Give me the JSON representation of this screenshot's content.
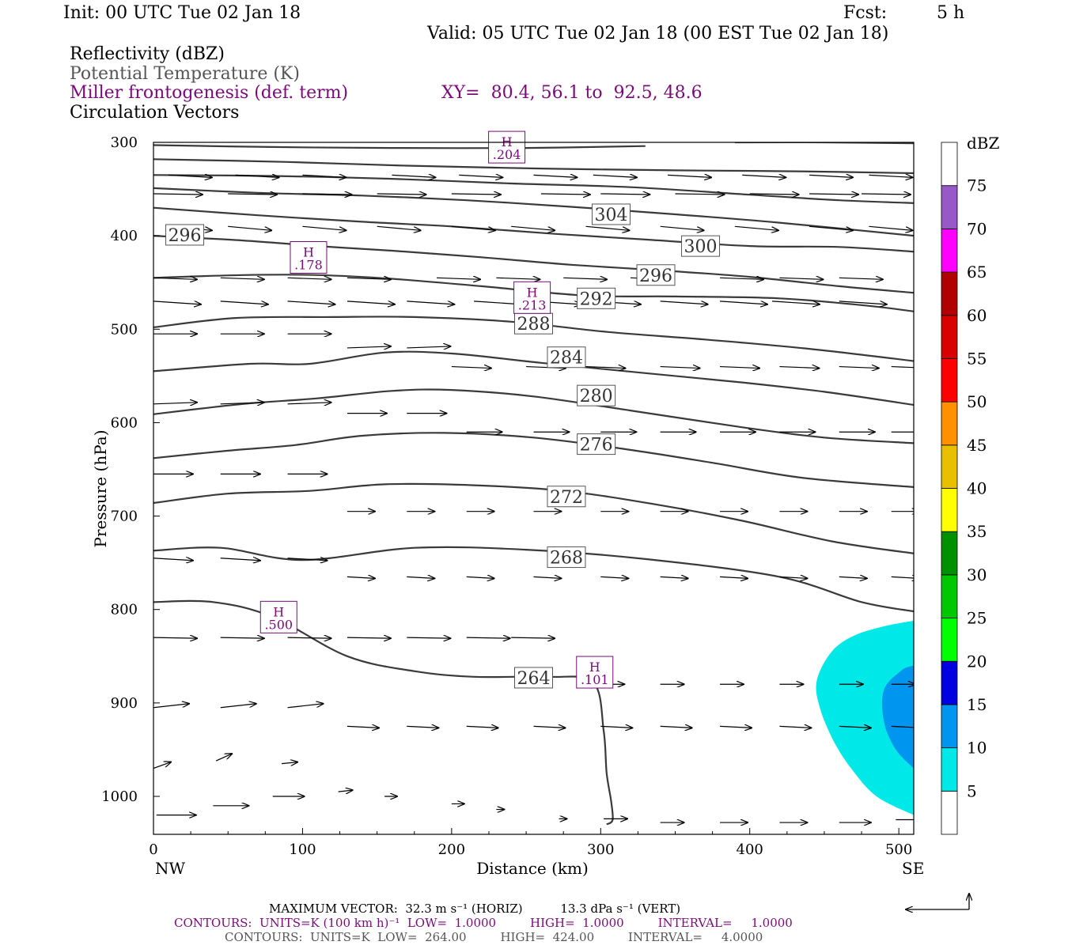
{
  "header": {
    "init": "Init: 00 UTC Tue 02 Jan 18",
    "fcst_label": "Fcst:",
    "fcst_value": "5 h",
    "valid": "Valid: 05 UTC Tue 02 Jan 18 (00 EST Tue 02 Jan 18)"
  },
  "legend": {
    "line1": "Reflectivity (dBZ)",
    "line2": "Potential Temperature (K)",
    "line3": "Miller frontogenesis (def. term)",
    "xy": "XY=  80.4, 56.1 to  92.5, 48.6",
    "line4": "Circulation Vectors"
  },
  "footer": {
    "line1": "MAXIMUM VECTOR:  32.3 m s⁻¹ (HORIZ)          13.3 dPa s⁻¹ (VERT)",
    "line2": "CONTOURS:  UNITS=K (100 km h)⁻¹  LOW=  1.0000         HIGH=  1.0000         INTERVAL=     1.0000",
    "line3": "CONTOURS:  UNITS=K  LOW=  264.00         HIGH=  424.00         INTERVAL=     4.0000"
  },
  "chart_data": {
    "type": "contour",
    "xlabel": "Distance (km)",
    "ylabel": "Pressure (hPa)",
    "x_end_left": "NW",
    "x_end_right": "SE",
    "xlim": [
      0,
      510
    ],
    "ylim": [
      300,
      1040
    ],
    "x_ticks": [
      0,
      100,
      200,
      300,
      400,
      500
    ],
    "y_ticks": [
      300,
      400,
      500,
      600,
      700,
      800,
      900,
      1000
    ],
    "colorbar": {
      "unit": "dBZ",
      "levels": [
        5,
        10,
        15,
        20,
        25,
        30,
        35,
        40,
        45,
        50,
        55,
        60,
        65,
        70,
        75
      ],
      "colors": [
        "#ffffff",
        "#00e8e8",
        "#0096f0",
        "#0000e0",
        "#00ff00",
        "#00c800",
        "#009000",
        "#ffff00",
        "#e8c000",
        "#ff9000",
        "#ff0000",
        "#d80000",
        "#b00000",
        "#ff00ff",
        "#9858c8",
        "#ffffff"
      ]
    },
    "theta_contours": [
      {
        "value": 264,
        "label": "264",
        "pts": [
          [
            0,
            792
          ],
          [
            40,
            792
          ],
          [
            80,
            808
          ],
          [
            130,
            850
          ],
          [
            175,
            866
          ],
          [
            215,
            872
          ],
          [
            265,
            872
          ],
          [
            295,
            878
          ],
          [
            302,
            930
          ],
          [
            304,
            975
          ],
          [
            307,
            1005
          ],
          [
            308,
            1025
          ],
          [
            304,
            1030
          ]
        ]
      },
      {
        "value": 268,
        "label": "268",
        "pts": [
          [
            0,
            737
          ],
          [
            45,
            734
          ],
          [
            100,
            747
          ],
          [
            175,
            734
          ],
          [
            250,
            736
          ],
          [
            330,
            746
          ],
          [
            420,
            765
          ],
          [
            475,
            792
          ],
          [
            510,
            802
          ]
        ]
      },
      {
        "value": 272,
        "label": "272",
        "pts": [
          [
            0,
            686
          ],
          [
            50,
            676
          ],
          [
            105,
            673
          ],
          [
            155,
            666
          ],
          [
            215,
            667
          ],
          [
            275,
            673
          ],
          [
            335,
            687
          ],
          [
            395,
            705
          ],
          [
            455,
            727
          ],
          [
            510,
            740
          ]
        ]
      },
      {
        "value": 276,
        "label": "276",
        "pts": [
          [
            0,
            638
          ],
          [
            50,
            630
          ],
          [
            95,
            624
          ],
          [
            140,
            614
          ],
          [
            195,
            611
          ],
          [
            255,
            616
          ],
          [
            315,
            628
          ],
          [
            375,
            643
          ],
          [
            435,
            659
          ],
          [
            510,
            669
          ]
        ]
      },
      {
        "value": 280,
        "label": "280",
        "pts": [
          [
            0,
            591
          ],
          [
            60,
            580
          ],
          [
            110,
            574
          ],
          [
            160,
            566
          ],
          [
            200,
            565
          ],
          [
            255,
            572
          ],
          [
            320,
            587
          ],
          [
            395,
            605
          ],
          [
            450,
            616
          ],
          [
            510,
            622
          ]
        ]
      },
      {
        "value": 284,
        "label": "284",
        "pts": [
          [
            0,
            545
          ],
          [
            65,
            537
          ],
          [
            105,
            537
          ],
          [
            155,
            525
          ],
          [
            200,
            526
          ],
          [
            260,
            536
          ],
          [
            330,
            547
          ],
          [
            395,
            557
          ],
          [
            450,
            567
          ],
          [
            510,
            581
          ]
        ]
      },
      {
        "value": 288,
        "label": "288",
        "pts": [
          [
            0,
            498
          ],
          [
            55,
            488
          ],
          [
            120,
            487
          ],
          [
            175,
            487
          ],
          [
            240,
            492
          ],
          [
            305,
            503
          ],
          [
            370,
            511
          ],
          [
            440,
            521
          ],
          [
            510,
            534
          ]
        ]
      },
      {
        "value": 292,
        "label": "292",
        "pts": [
          [
            0,
            445
          ],
          [
            60,
            442
          ],
          [
            110,
            442
          ],
          [
            160,
            446
          ],
          [
            220,
            454
          ],
          [
            290,
            464
          ],
          [
            350,
            465
          ],
          [
            420,
            467
          ],
          [
            480,
            475
          ],
          [
            510,
            481
          ]
        ]
      },
      {
        "value": 296,
        "label": "296",
        "pts": [
          [
            0,
            400
          ],
          [
            60,
            405
          ],
          [
            110,
            411
          ],
          [
            160,
            416
          ],
          [
            220,
            423
          ],
          [
            280,
            431
          ],
          [
            340,
            437
          ],
          [
            400,
            444
          ],
          [
            460,
            454
          ],
          [
            510,
            461
          ]
        ]
      },
      {
        "value": 300,
        "label": "300",
        "pts": [
          [
            0,
            370
          ],
          [
            70,
            378
          ],
          [
            140,
            385
          ],
          [
            200,
            390
          ],
          [
            270,
            398
          ],
          [
            330,
            404
          ],
          [
            400,
            411
          ],
          [
            460,
            412
          ],
          [
            510,
            417
          ]
        ]
      },
      {
        "value": 304,
        "label": "304",
        "pts": [
          [
            0,
            349
          ],
          [
            70,
            354
          ],
          [
            140,
            357
          ],
          [
            210,
            362
          ],
          [
            280,
            369
          ],
          [
            350,
            377
          ],
          [
            420,
            386
          ],
          [
            510,
            400
          ]
        ]
      },
      {
        "value": 308,
        "label": "",
        "pts": [
          [
            0,
            335
          ],
          [
            80,
            336
          ],
          [
            160,
            339
          ],
          [
            240,
            344
          ],
          [
            320,
            348
          ],
          [
            400,
            356
          ],
          [
            460,
            362
          ],
          [
            510,
            365
          ]
        ]
      },
      {
        "value": 312,
        "label": "",
        "pts": [
          [
            0,
            318
          ],
          [
            90,
            321
          ],
          [
            170,
            325
          ],
          [
            260,
            328
          ],
          [
            350,
            330
          ],
          [
            430,
            331
          ],
          [
            510,
            333
          ]
        ]
      },
      {
        "value": 316,
        "label": "",
        "pts": [
          [
            0,
            303
          ],
          [
            80,
            305
          ],
          [
            160,
            306
          ],
          [
            250,
            306
          ],
          [
            330,
            304
          ]
        ]
      },
      {
        "value": 320,
        "label": "",
        "pts": [
          [
            390,
            300
          ],
          [
            450,
            300
          ],
          [
            510,
            301
          ]
        ]
      }
    ],
    "theta_label_positions": [
      {
        "label": "264",
        "x": 255,
        "p": 873
      },
      {
        "label": "268",
        "x": 277,
        "p": 744
      },
      {
        "label": "272",
        "x": 277,
        "p": 679
      },
      {
        "label": "276",
        "x": 297,
        "p": 623
      },
      {
        "label": "280",
        "x": 297,
        "p": 571
      },
      {
        "label": "284",
        "x": 277,
        "p": 530
      },
      {
        "label": "288",
        "x": 255,
        "p": 494
      },
      {
        "label": "292",
        "x": 297,
        "p": 467
      },
      {
        "label": "296",
        "x": 337,
        "p": 442
      },
      {
        "label": "296",
        "x": 21,
        "p": 399
      },
      {
        "label": "300",
        "x": 367,
        "p": 411
      },
      {
        "label": "304",
        "x": 307,
        "p": 377
      }
    ],
    "frontogenesis_maxima": [
      {
        "label": "H",
        "value": ".204",
        "x": 237,
        "p": 306
      },
      {
        "label": "H",
        "value": ".178",
        "x": 104,
        "p": 424
      },
      {
        "label": "H",
        "value": ".213",
        "x": 254,
        "p": 467
      },
      {
        "label": "H",
        "value": ".500",
        "x": 84,
        "p": 809
      },
      {
        "label": "H",
        "value": ".101",
        "x": 296,
        "p": 868
      }
    ],
    "reflectivity_areas": [
      {
        "dbz": 5,
        "pts": [
          [
            510,
            812
          ],
          [
            490,
            818
          ],
          [
            470,
            828
          ],
          [
            455,
            845
          ],
          [
            445,
            876
          ],
          [
            447,
            905
          ],
          [
            456,
            940
          ],
          [
            468,
            970
          ],
          [
            485,
            1000
          ],
          [
            510,
            1020
          ]
        ]
      },
      {
        "dbz": 10,
        "pts": [
          [
            510,
            860
          ],
          [
            502,
            865
          ],
          [
            490,
            886
          ],
          [
            490,
            920
          ],
          [
            498,
            950
          ],
          [
            510,
            970
          ]
        ]
      }
    ],
    "vectors": [
      {
        "x": 2,
        "p": 1020,
        "u": 50,
        "w": 0
      },
      {
        "x": 40,
        "p": 1010,
        "u": 45,
        "w": 0
      },
      {
        "x": 80,
        "p": 1000,
        "u": 40,
        "w": 0
      },
      {
        "x": 0,
        "p": 970,
        "u": 22,
        "w": -8
      },
      {
        "x": 42,
        "p": 962,
        "u": 20,
        "w": -9
      },
      {
        "x": 86,
        "p": 965,
        "u": 20,
        "w": -2
      },
      {
        "x": 124,
        "p": 995,
        "u": 18,
        "w": -2
      },
      {
        "x": 155,
        "p": 1000,
        "u": 16,
        "w": 0
      },
      {
        "x": 200,
        "p": 1008,
        "u": 16,
        "w": 0
      },
      {
        "x": 230,
        "p": 1014,
        "u": 10,
        "w": 0
      },
      {
        "x": 272,
        "p": 1024,
        "u": 10,
        "w": 0
      },
      {
        "x": 302,
        "p": 1024,
        "u": 30,
        "w": 0
      },
      {
        "x": 340,
        "p": 1028,
        "u": 30,
        "w": 0
      },
      {
        "x": 380,
        "p": 1028,
        "u": 35,
        "w": 0
      },
      {
        "x": 420,
        "p": 1028,
        "u": 35,
        "w": 0
      },
      {
        "x": 460,
        "p": 1028,
        "u": 40,
        "w": 0
      },
      {
        "x": 498,
        "p": 1025,
        "u": 40,
        "w": 0
      }
    ]
  }
}
